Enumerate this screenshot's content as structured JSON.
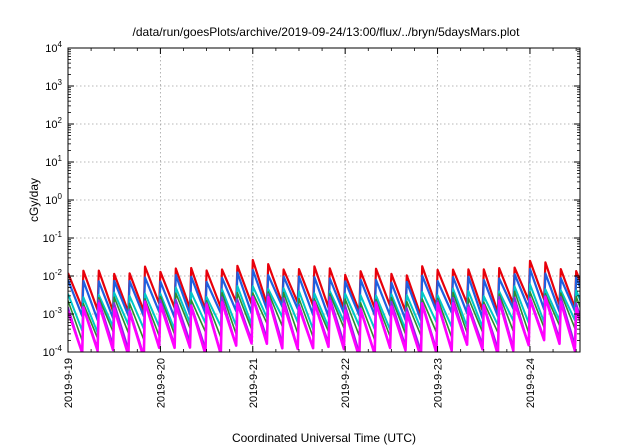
{
  "chart_data": {
    "type": "line",
    "title": "/data/run/goesPlots/archive/2019-09-24/13:00/flux/../bryn/5daysMars.plot",
    "xlabel": "Coordinated Universal Time (UTC)",
    "ylabel": "cGy/day",
    "yscale": "log",
    "ylim": [
      0.0001,
      10000
    ],
    "xlim": [
      "2019-09-19",
      "2019-09-24 13:00"
    ],
    "grid": true,
    "x_tick_labels": [
      "2019-9-19",
      "2019-9-20",
      "2019-9-21",
      "2019-9-22",
      "2019-9-23",
      "2019-9-24"
    ],
    "y_ticks": [
      {
        "base": "10",
        "exp": "-4"
      },
      {
        "base": "10",
        "exp": "-3"
      },
      {
        "base": "10",
        "exp": "-2"
      },
      {
        "base": "10",
        "exp": "-1"
      },
      {
        "base": "10",
        "exp": "0"
      },
      {
        "base": "10",
        "exp": "1"
      },
      {
        "base": "10",
        "exp": "2"
      },
      {
        "base": "10",
        "exp": "3"
      },
      {
        "base": "10",
        "exp": "4"
      }
    ],
    "sawtooth": {
      "x_start": "2019-09-19",
      "days": 5.54,
      "cycles_per_day": 6,
      "modulation": [
        0,
        0,
        0.1,
        0.05,
        -0.05,
        0.15,
        0.1,
        0.2,
        0.1,
        0.05,
        0.2,
        0.25,
        0.35,
        0.3,
        0.2,
        0.1,
        0.15,
        0.2
      ]
    },
    "series": [
      {
        "color": "#e8000b",
        "peak": 0.012,
        "trough": 0.0012,
        "width": 2.2
      },
      {
        "color": "#1f5fe0",
        "peak": 0.007,
        "trough": 0.0008,
        "width": 2.2
      },
      {
        "color": "#00c8c8",
        "peak": 0.003,
        "trough": 0.0004,
        "width": 2.0
      },
      {
        "color": "#2e8b2e",
        "peak": 0.0022,
        "trough": 0.00025,
        "width": 1.6
      },
      {
        "color": "#8a2be2",
        "peak": 0.0017,
        "trough": 0.00011,
        "width": 1.8
      },
      {
        "color": "#ff00ff",
        "peak": 0.0014,
        "trough": 9e-05,
        "width": 2.6
      }
    ]
  }
}
